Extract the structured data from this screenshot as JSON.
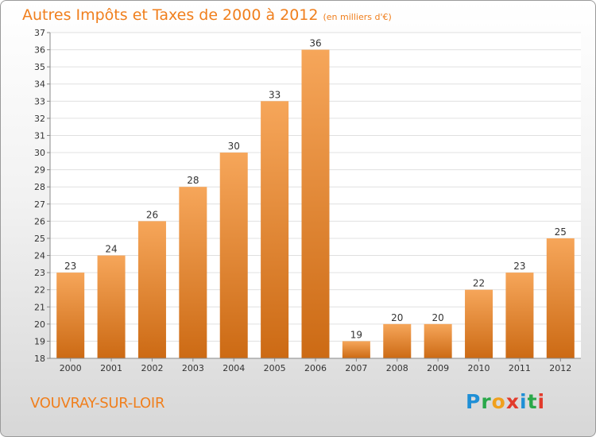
{
  "header": {
    "title": "Autres Impôts et Taxes de 2000 à 2012",
    "subtitle": "(en milliers d'€)"
  },
  "footer": {
    "location": "VOUVRAY-SUR-LOIR",
    "logo": "Proxiti"
  },
  "colors": {
    "accent": "#f07f1d",
    "bar_top": "#f6a65a",
    "bar_bottom": "#cc6a14",
    "logo": [
      "#1f8fd6",
      "#2aa84a",
      "#f0a01d",
      "#e23b2c",
      "#1f8fd6",
      "#2aa84a",
      "#e23b2c"
    ]
  },
  "chart_data": {
    "type": "bar",
    "title": "Autres Impôts et Taxes de 2000 à 2012",
    "subtitle": "(en milliers d'€)",
    "xlabel": "",
    "ylabel": "",
    "categories": [
      "2000",
      "2001",
      "2002",
      "2003",
      "2004",
      "2005",
      "2006",
      "2007",
      "2008",
      "2009",
      "2010",
      "2011",
      "2012"
    ],
    "values": [
      23,
      24,
      26,
      28,
      30,
      33,
      36,
      19,
      20,
      20,
      22,
      23,
      25
    ],
    "ylim": [
      18,
      37
    ],
    "yticks": [
      18,
      19,
      20,
      21,
      22,
      23,
      24,
      25,
      26,
      27,
      28,
      29,
      30,
      31,
      32,
      33,
      34,
      35,
      36,
      37
    ],
    "grid": true,
    "legend": "none"
  }
}
